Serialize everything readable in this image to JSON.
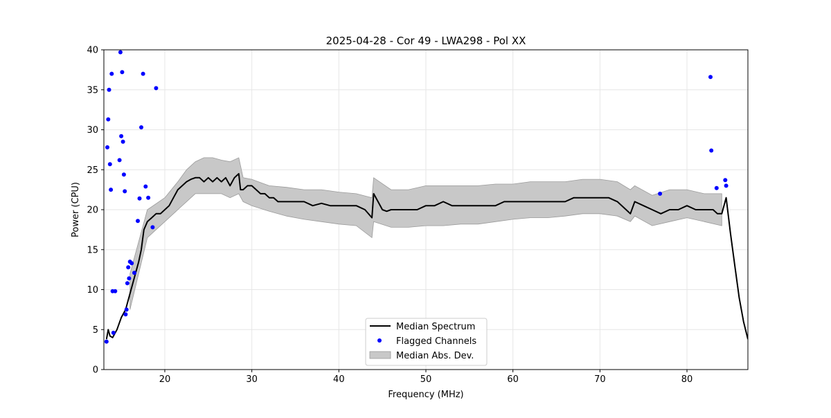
{
  "chart_data": {
    "type": "line",
    "title": "2025-04-28 - Cor 49 - LWA298 - Pol XX",
    "xlabel": "Frequency (MHz)",
    "ylabel": "Power (CPU)",
    "xlim": [
      13,
      87
    ],
    "ylim": [
      0,
      40
    ],
    "xticks": [
      20,
      30,
      40,
      50,
      60,
      70,
      80
    ],
    "yticks": [
      0,
      5,
      10,
      15,
      20,
      25,
      30,
      35,
      40
    ],
    "grid": true,
    "legend_position": "lower-center",
    "legend": [
      "Median Spectrum",
      "Flagged Channels",
      "Median Abs. Dev."
    ],
    "colors": {
      "median": "#000000",
      "flagged": "#0000ff",
      "mad_fill": "#c8c8c8",
      "mad_edge": "#9a9a9a"
    },
    "series": [
      {
        "name": "Median Spectrum",
        "x": [
          13.3,
          13.5,
          13.7,
          14.0,
          14.5,
          15.0,
          15.5,
          16.0,
          16.5,
          17.0,
          17.3,
          17.6,
          18.0,
          18.5,
          19.0,
          19.5,
          20.0,
          20.5,
          21.0,
          21.5,
          22.0,
          22.5,
          23.0,
          23.5,
          24.0,
          24.5,
          25.0,
          25.5,
          26.0,
          26.5,
          27.0,
          27.5,
          28.0,
          28.5,
          28.7,
          29.0,
          29.5,
          30.0,
          30.5,
          31.0,
          31.5,
          32.0,
          32.5,
          33.0,
          33.5,
          34.0,
          35.0,
          36.0,
          37.0,
          38.0,
          39.0,
          40.0,
          41.0,
          42.0,
          43.0,
          43.8,
          44.0,
          44.5,
          45.0,
          45.5,
          46.0,
          47.0,
          48.0,
          49.0,
          50.0,
          51.0,
          52.0,
          53.0,
          54.0,
          55.0,
          56.0,
          57.0,
          58.0,
          59.0,
          60.0,
          61.0,
          62.0,
          63.0,
          64.0,
          65.0,
          66.0,
          67.0,
          68.0,
          69.0,
          70.0,
          71.0,
          72.0,
          73.0,
          73.5,
          74.0,
          75.0,
          76.0,
          77.0,
          78.0,
          79.0,
          80.0,
          81.0,
          82.0,
          82.5,
          83.0,
          83.5,
          84.0,
          84.5,
          85.0,
          85.5,
          86.0,
          86.5,
          87.0
        ],
        "y": [
          3.8,
          5.0,
          4.2,
          4.0,
          5.0,
          6.5,
          7.5,
          9.5,
          11.5,
          13.5,
          15.0,
          17.5,
          18.5,
          19.0,
          19.5,
          19.5,
          20.0,
          20.5,
          21.5,
          22.5,
          23.0,
          23.5,
          23.8,
          24.0,
          24.0,
          23.5,
          24.0,
          23.5,
          24.0,
          23.5,
          24.0,
          23.0,
          24.0,
          24.5,
          22.5,
          22.5,
          23.0,
          23.0,
          22.5,
          22.0,
          22.0,
          21.5,
          21.5,
          21.0,
          21.0,
          21.0,
          21.0,
          21.0,
          20.5,
          20.8,
          20.5,
          20.5,
          20.5,
          20.5,
          20.0,
          19.0,
          22.0,
          21.0,
          20.0,
          19.8,
          20.0,
          20.0,
          20.0,
          20.0,
          20.5,
          20.5,
          21.0,
          20.5,
          20.5,
          20.5,
          20.5,
          20.5,
          20.5,
          21.0,
          21.0,
          21.0,
          21.0,
          21.0,
          21.0,
          21.0,
          21.0,
          21.5,
          21.5,
          21.5,
          21.5,
          21.5,
          21.0,
          20.0,
          19.5,
          21.0,
          20.5,
          20.0,
          19.5,
          20.0,
          20.0,
          20.5,
          20.0,
          20.0,
          20.0,
          20.0,
          19.5,
          19.5,
          21.5,
          17.0,
          13.0,
          9.0,
          6.0,
          3.8
        ]
      }
    ],
    "flagged_channels": {
      "x": [
        13.3,
        13.4,
        13.5,
        13.6,
        13.7,
        13.8,
        13.9,
        14.0,
        14.1,
        14.3,
        14.8,
        14.9,
        15.0,
        15.1,
        15.2,
        15.3,
        15.4,
        15.5,
        15.6,
        15.7,
        15.8,
        15.9,
        16.0,
        16.2,
        16.5,
        16.9,
        17.1,
        17.3,
        17.5,
        17.8,
        18.1,
        18.6,
        19.0,
        76.9,
        82.7,
        82.8,
        83.4,
        84.4,
        84.5
      ],
      "y": [
        3.5,
        27.8,
        31.3,
        35.0,
        25.7,
        22.5,
        37.0,
        9.8,
        4.6,
        9.8,
        26.2,
        39.7,
        29.2,
        37.2,
        28.5,
        24.4,
        22.3,
        6.9,
        7.5,
        10.8,
        12.8,
        11.4,
        13.5,
        13.3,
        12.1,
        18.6,
        21.4,
        30.3,
        37.0,
        22.9,
        21.5,
        17.8,
        35.2,
        22.0,
        36.6,
        27.4,
        22.7,
        23.7,
        23.0
      ]
    },
    "median_abs_dev": {
      "x": [
        16.0,
        18.0,
        20.0,
        21.5,
        22.5,
        23.5,
        24.5,
        25.5,
        26.5,
        27.5,
        28.5,
        29.0,
        30.0,
        32.0,
        34.0,
        36.0,
        38.0,
        40.0,
        42.0,
        43.8,
        44.0,
        46.0,
        48.0,
        50.0,
        52.0,
        54.0,
        56.0,
        58.0,
        60.0,
        62.0,
        64.0,
        66.0,
        68.0,
        70.0,
        72.0,
        73.5,
        74.0,
        76.0,
        78.0,
        80.0,
        82.0,
        84.0
      ],
      "lower": [
        7.5,
        16.5,
        18.5,
        20.0,
        21.0,
        22.0,
        22.0,
        22.0,
        22.0,
        21.5,
        22.0,
        21.0,
        20.5,
        19.8,
        19.2,
        18.8,
        18.5,
        18.2,
        18.0,
        16.5,
        18.5,
        17.8,
        17.8,
        18.0,
        18.0,
        18.2,
        18.2,
        18.5,
        18.8,
        19.0,
        19.0,
        19.2,
        19.5,
        19.5,
        19.2,
        18.5,
        19.2,
        18.0,
        18.5,
        19.0,
        18.5,
        18.0
      ],
      "upper": [
        12.0,
        20.0,
        21.5,
        23.5,
        25.0,
        26.0,
        26.5,
        26.5,
        26.2,
        26.0,
        26.5,
        24.0,
        23.8,
        23.0,
        22.8,
        22.5,
        22.5,
        22.2,
        22.0,
        21.5,
        24.0,
        22.5,
        22.5,
        23.0,
        23.0,
        23.0,
        23.0,
        23.2,
        23.2,
        23.5,
        23.5,
        23.5,
        23.8,
        23.8,
        23.5,
        22.5,
        23.0,
        21.8,
        22.5,
        22.5,
        22.0,
        22.0
      ]
    }
  }
}
